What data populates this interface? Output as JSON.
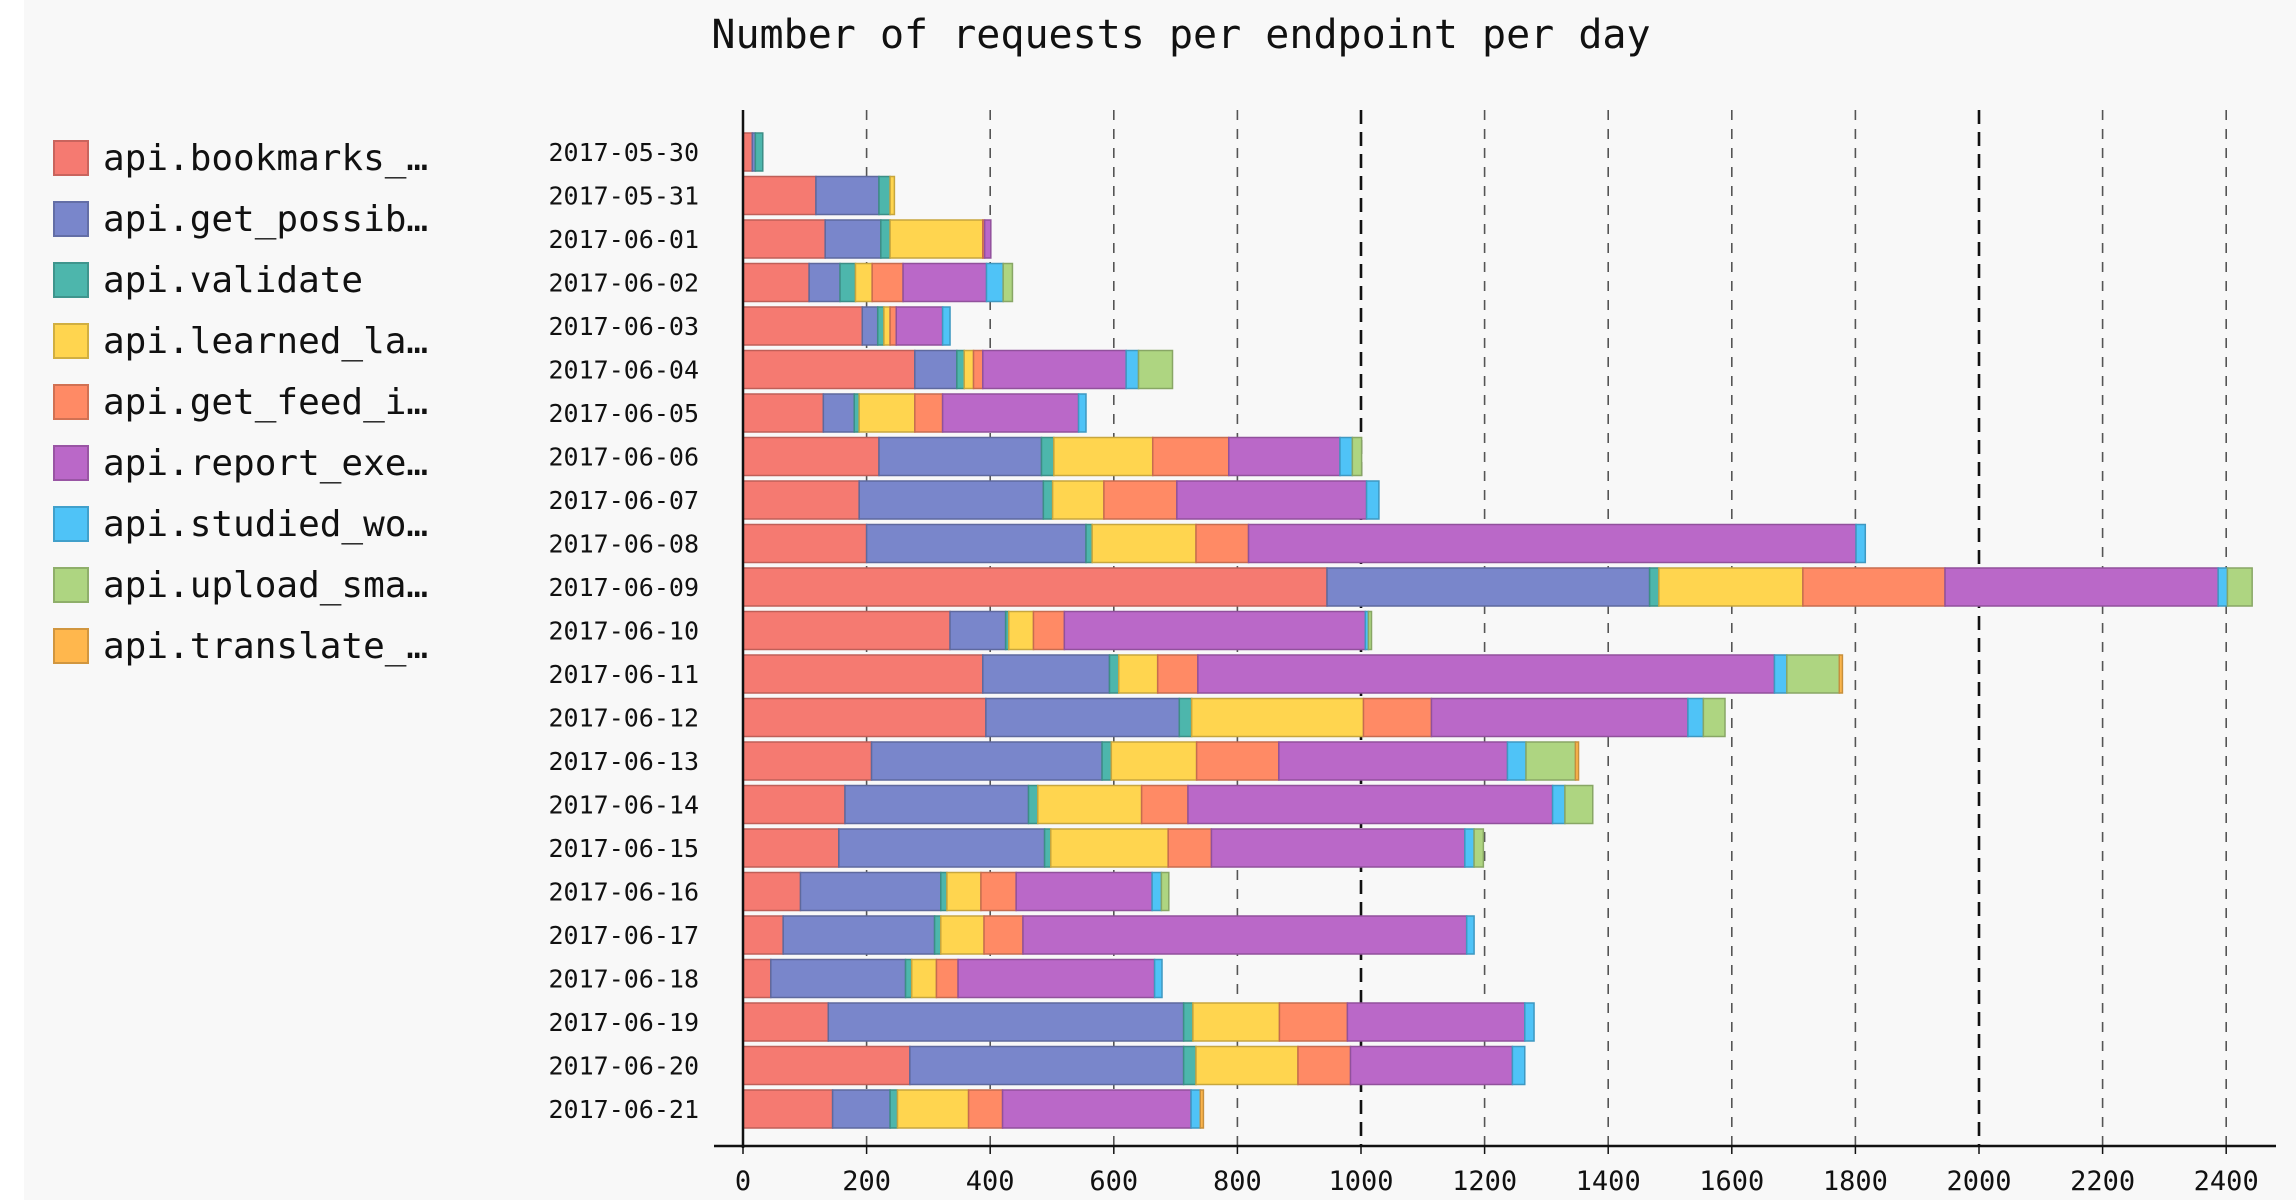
{
  "chart_data": {
    "type": "bar",
    "orientation": "horizontal",
    "stacked": true,
    "title": "Number of requests per endpoint per day",
    "xlabel": "",
    "ylabel": "",
    "xlim": [
      0,
      2450
    ],
    "x_ticks": [
      0,
      200,
      400,
      600,
      800,
      1000,
      1200,
      1400,
      1600,
      1800,
      2000,
      2200,
      2400
    ],
    "x_tick_labels": [
      "0",
      "200",
      "400",
      "600",
      "800",
      "1000",
      "1200",
      "1400",
      "1600",
      "1800",
      "2000",
      "2200",
      "2400"
    ],
    "major_gridlines": [
      1000,
      2000
    ],
    "grid": true,
    "legend_position": "left",
    "categories": [
      "2017-05-30",
      "2017-05-31",
      "2017-06-01",
      "2017-06-02",
      "2017-06-03",
      "2017-06-04",
      "2017-06-05",
      "2017-06-06",
      "2017-06-07",
      "2017-06-08",
      "2017-06-09",
      "2017-06-10",
      "2017-06-11",
      "2017-06-12",
      "2017-06-13",
      "2017-06-14",
      "2017-06-15",
      "2017-06-16",
      "2017-06-17",
      "2017-06-18",
      "2017-06-19",
      "2017-06-20",
      "2017-06-21"
    ],
    "series": [
      {
        "name": "api.bookmarks_…",
        "color": "#F57A71",
        "values": [
          15,
          118,
          133,
          107,
          193,
          278,
          130,
          220,
          188,
          200,
          945,
          335,
          388,
          393,
          208,
          165,
          155,
          93,
          65,
          45,
          138,
          270,
          145
        ]
      },
      {
        "name": "api.get_possib…",
        "color": "#7986CB",
        "values": [
          5,
          102,
          90,
          50,
          25,
          68,
          50,
          263,
          298,
          355,
          522,
          90,
          205,
          313,
          373,
          297,
          333,
          227,
          245,
          218,
          575,
          443,
          93
        ]
      },
      {
        "name": "api.validate",
        "color": "#4DB6AC",
        "values": [
          12,
          18,
          15,
          25,
          10,
          12,
          8,
          20,
          15,
          10,
          15,
          5,
          15,
          20,
          15,
          15,
          10,
          10,
          10,
          10,
          15,
          20,
          12
        ]
      },
      {
        "name": "api.learned_la…",
        "color": "#FFD54F",
        "values": [
          0,
          7,
          150,
          27,
          10,
          15,
          90,
          160,
          83,
          168,
          233,
          40,
          63,
          278,
          138,
          168,
          190,
          55,
          70,
          40,
          140,
          165,
          115
        ]
      },
      {
        "name": "api.get_feed_i…",
        "color": "#FF8A65",
        "values": [
          0,
          0,
          3,
          50,
          10,
          15,
          45,
          123,
          118,
          85,
          230,
          50,
          65,
          110,
          133,
          75,
          70,
          57,
          63,
          35,
          110,
          85,
          55
        ]
      },
      {
        "name": "api.report_exe…",
        "color": "#BA68C8",
        "values": [
          0,
          0,
          10,
          135,
          75,
          232,
          220,
          180,
          307,
          983,
          442,
          487,
          933,
          415,
          370,
          590,
          410,
          220,
          718,
          318,
          287,
          262,
          305
        ]
      },
      {
        "name": "api.studied_wo…",
        "color": "#4FC3F7",
        "values": [
          0,
          0,
          0,
          27,
          12,
          20,
          12,
          20,
          20,
          15,
          15,
          5,
          20,
          25,
          30,
          20,
          15,
          15,
          12,
          12,
          15,
          20,
          15
        ]
      },
      {
        "name": "api.upload_sma…",
        "color": "#AED581",
        "values": [
          0,
          0,
          0,
          15,
          0,
          55,
          0,
          15,
          0,
          0,
          40,
          5,
          85,
          35,
          80,
          45,
          15,
          12,
          0,
          0,
          0,
          0,
          0
        ]
      },
      {
        "name": "api.translate_…",
        "color": "#FFB74D",
        "values": [
          0,
          0,
          0,
          0,
          0,
          0,
          0,
          0,
          0,
          0,
          0,
          0,
          5,
          0,
          5,
          0,
          0,
          0,
          0,
          0,
          0,
          0,
          5
        ]
      }
    ]
  }
}
